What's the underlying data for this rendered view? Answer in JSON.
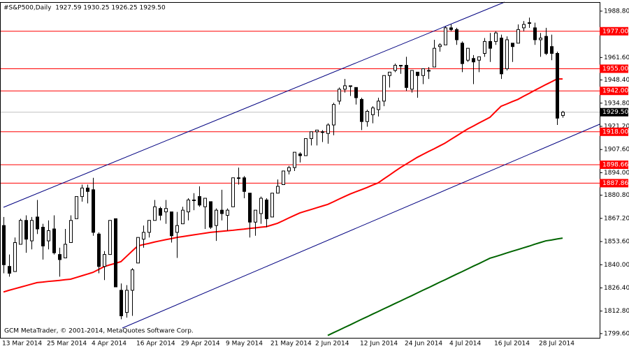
{
  "chart_data": {
    "type": "candlestick",
    "title": "#S&P500,Daily  1927.59 1930.25 1926.25 1929.50",
    "footer": "GCM MetaTrader, © 2001-2014, MetaQuotes Software Corp.",
    "categories": [
      "13 Mar 2014",
      null,
      null,
      null,
      null,
      null,
      null,
      null,
      "25 Mar 2014",
      null,
      null,
      null,
      null,
      null,
      null,
      null,
      "4 Apr 2014",
      null,
      null,
      null,
      null,
      null,
      null,
      null,
      "16 Apr 2014",
      null,
      null,
      null,
      null,
      null,
      null,
      null,
      "29 Apr 2014",
      null,
      null,
      null,
      null,
      null,
      null,
      null,
      "9 May 2014",
      null,
      null,
      null,
      null,
      null,
      null,
      null,
      "21 May 2014",
      null,
      null,
      null,
      null,
      null,
      null,
      null,
      "2 Jun 2014",
      null,
      null,
      null,
      null,
      null,
      null,
      null,
      "12 Jun 2014",
      null,
      null,
      null,
      null,
      null,
      null,
      null,
      "24 Jun 2014",
      null,
      null,
      null,
      null,
      null,
      null,
      null,
      "4 Jul 2014",
      null,
      null,
      null,
      null,
      null,
      null,
      null,
      "16 Jul 2014",
      null,
      null,
      null,
      null,
      null,
      null,
      null,
      "28 Jul 2014",
      null,
      null,
      null,
      null
    ],
    "open": [
      1863,
      1839,
      1836,
      1852,
      1866,
      1854,
      1868,
      1862,
      1854,
      1861,
      1846,
      1844,
      1853,
      1867,
      1880,
      1885,
      1884,
      1858,
      1839,
      1846,
      1867,
      1825,
      1812,
      1825,
      1841,
      1855,
      1859,
      1866,
      1873,
      1871,
      1871,
      1859,
      1864,
      1871,
      1878,
      1880,
      1874,
      1877,
      1863,
      1872,
      1869,
      1874,
      1891,
      1891,
      1882,
      1865,
      1870,
      1878,
      1868,
      1882,
      1887,
      1895,
      1897,
      1905,
      1904,
      1914,
      1918,
      1918,
      1917,
      1922,
      1936,
      1943,
      1945,
      1944,
      1937,
      1924,
      1928,
      1931,
      1936,
      1951,
      1954,
      1957,
      1957,
      1943,
      1953,
      1951,
      1954,
      1956,
      1968,
      1969,
      1979,
      1978,
      1970,
      1960,
      1961,
      1960,
      1964,
      1971,
      1971,
      1973,
      1955,
      1970,
      1970,
      1979,
      1982,
      1979,
      1972,
      1974,
      1968,
      1964,
      1927.59
    ],
    "high": [
      1868,
      1846,
      1856,
      1867,
      1869,
      1868,
      1878,
      1864,
      1866,
      1869,
      1850,
      1861,
      1869,
      1880,
      1887,
      1887,
      1891,
      1859,
      1848,
      1866,
      1867,
      1829,
      1828,
      1838,
      1856,
      1863,
      1866,
      1878,
      1874,
      1878,
      1871,
      1871,
      1874,
      1879,
      1882,
      1886,
      1879,
      1877,
      1873,
      1884,
      1873,
      1891,
      1897,
      1892,
      1882,
      1872,
      1880,
      1879,
      1882,
      1890,
      1895,
      1898,
      1906,
      1906,
      1914,
      1918,
      1919,
      1919,
      1923,
      1935,
      1944,
      1949,
      1945,
      1944,
      1938,
      1931,
      1933,
      1938,
      1951,
      1953,
      1958,
      1957,
      1962,
      1954,
      1953,
      1955,
      1956,
      1972,
      1970,
      1980,
      1981,
      1979,
      1971,
      1967,
      1963,
      1962,
      1973,
      1976,
      1977,
      1975,
      1974,
      1970,
      1981,
      1983,
      1985,
      1982,
      1976,
      1979,
      1975,
      1965,
      1930.25
    ],
    "low": [
      1835,
      1833,
      1836,
      1852,
      1847,
      1849,
      1858,
      1843,
      1849,
      1846,
      1833,
      1844,
      1853,
      1867,
      1877,
      1876,
      1857,
      1835,
      1831,
      1846,
      1827,
      1808,
      1809,
      1810,
      1841,
      1850,
      1856,
      1866,
      1866,
      1864,
      1853,
      1844,
      1864,
      1866,
      1872,
      1874,
      1861,
      1861,
      1854,
      1866,
      1860,
      1874,
      1887,
      1879,
      1856,
      1857,
      1864,
      1862,
      1868,
      1882,
      1887,
      1893,
      1895,
      1900,
      1904,
      1910,
      1910,
      1912,
      1911,
      1916,
      1934,
      1941,
      1939,
      1934,
      1919,
      1921,
      1923,
      1927,
      1933,
      1944,
      1953,
      1952,
      1942,
      1941,
      1938,
      1946,
      1949,
      1956,
      1965,
      1969,
      1977,
      1969,
      1953,
      1959,
      1946,
      1953,
      1962,
      1959,
      1969,
      1949,
      1954,
      1959,
      1970,
      1977,
      1979,
      1969,
      1962,
      1963,
      1960,
      1922,
      1926.25
    ],
    "close": [
      1840,
      1835,
      1853,
      1866,
      1855,
      1866,
      1861,
      1851,
      1860,
      1847,
      1843,
      1852,
      1866,
      1880,
      1885,
      1883,
      1859,
      1839,
      1846,
      1866,
      1827,
      1810,
      1825,
      1837,
      1856,
      1859,
      1866,
      1874,
      1869,
      1873,
      1857,
      1863,
      1872,
      1878,
      1878,
      1875,
      1879,
      1862,
      1872,
      1870,
      1872,
      1891,
      1891,
      1883,
      1865,
      1872,
      1879,
      1867,
      1882,
      1886,
      1895,
      1897,
      1906,
      1904,
      1914,
      1918,
      1919,
      1918,
      1922,
      1934,
      1943,
      1945,
      1945,
      1938,
      1924,
      1930,
      1932,
      1936,
      1951,
      1953,
      1957,
      1957,
      1944,
      1954,
      1951,
      1955,
      1954,
      1967,
      1969,
      1979,
      1978,
      1972,
      1958,
      1967,
      1959,
      1962,
      1971,
      1967,
      1976,
      1952,
      1972,
      1968,
      1978,
      1981,
      1982,
      1972,
      1973,
      1964,
      1964,
      1926,
      1929.5
    ],
    "up_color": "#ffffff",
    "down_color": "#000000",
    "lines": [
      {
        "color": "#ff0000",
        "values": [
          1824.0,
          1825.0,
          1825.9,
          1826.8,
          1827.7,
          1828.6,
          1829.5,
          1829.8,
          1830.2,
          1830.5,
          1830.8,
          1831.2,
          1831.5,
          1832.5,
          1833.5,
          1834.5,
          1835.5,
          1837.2,
          1838.9,
          1839.9,
          1840.8,
          1841.8,
          1844.9,
          1848.0,
          1851.0,
          1851.8,
          1852.5,
          1853.3,
          1854.0,
          1854.7,
          1855.3,
          1856.0,
          1856.5,
          1857.0,
          1857.5,
          1858.0,
          1858.5,
          1859.0,
          1859.3,
          1859.6,
          1859.9,
          1860.2,
          1860.6,
          1860.9,
          1861.3,
          1861.6,
          1862.0,
          1862.3,
          1863.3,
          1864.3,
          1865.8,
          1867.4,
          1868.9,
          1870.4,
          1871.4,
          1872.4,
          1873.4,
          1874.4,
          1875.4,
          1876.9,
          1878.5,
          1880.0,
          1881.5,
          1882.8,
          1884.0,
          1885.3,
          1886.7,
          1888.0,
          1890.3,
          1892.5,
          1894.8,
          1897.0,
          1899.0,
          1901.0,
          1903.0,
          1904.7,
          1906.4,
          1908.0,
          1909.7,
          1911.4,
          1913.5,
          1915.5,
          1917.6,
          1919.6,
          1921.3,
          1923.1,
          1924.8,
          1926.5,
          1929.8,
          1933.0,
          1934.3,
          1935.7,
          1937.0,
          1938.8,
          1940.5,
          1942.3,
          1944.0,
          1945.7,
          1947.3,
          1949.0,
          1949.0
        ]
      },
      {
        "color": "#006400",
        "values": [
          null,
          null,
          null,
          null,
          null,
          null,
          null,
          null,
          null,
          null,
          null,
          null,
          null,
          null,
          null,
          null,
          null,
          null,
          null,
          null,
          null,
          null,
          null,
          null,
          null,
          null,
          null,
          null,
          null,
          null,
          null,
          null,
          null,
          null,
          null,
          null,
          null,
          null,
          null,
          null,
          null,
          null,
          null,
          null,
          null,
          null,
          null,
          null,
          null,
          null,
          null,
          null,
          null,
          null,
          null,
          null,
          null,
          null,
          1798.5,
          1800.1,
          1801.6,
          1803.2,
          1804.7,
          1806.3,
          1807.9,
          1809.4,
          1811.0,
          1812.5,
          1814.1,
          1815.6,
          1817.2,
          1818.7,
          1820.3,
          1821.8,
          1823.4,
          1825.0,
          1826.5,
          1828.1,
          1829.7,
          1831.2,
          1832.8,
          1834.4,
          1835.9,
          1837.5,
          1839.1,
          1840.6,
          1842.2,
          1843.8,
          1844.8,
          1845.8,
          1846.9,
          1847.9,
          1848.9,
          1849.9,
          1850.9,
          1852.0,
          1853.0,
          1854.0,
          1854.5,
          1855.1,
          1855.6
        ]
      }
    ],
    "levels": [
      {
        "value": 1977.0,
        "label": "1977.00",
        "color": "#ff0000"
      },
      {
        "value": 1955.0,
        "label": "1955.00",
        "color": "#ff0000"
      },
      {
        "value": 1942.0,
        "label": "1942.00",
        "color": "#ff0000"
      },
      {
        "value": 1918.0,
        "label": "1918.00",
        "color": "#ff0000"
      },
      {
        "value": 1898.66,
        "label": "1898.66",
        "color": "#ff0000"
      },
      {
        "value": 1887.86,
        "label": "1887.86",
        "color": "#ff0000"
      }
    ],
    "price_line": {
      "value": 1929.5,
      "label": "1929.50",
      "color": "#c0c0c0"
    },
    "ylim": [
      1797.1,
      1994.1
    ],
    "yticks": [
      {
        "value": 1988.8,
        "label": "1988.80"
      },
      {
        "value": 1961.6,
        "label": "1961.60"
      },
      {
        "value": 1948.4,
        "label": "1948.40"
      },
      {
        "value": 1934.8,
        "label": "1934.80"
      },
      {
        "value": 1921.2,
        "label": "1921.20"
      },
      {
        "value": 1907.6,
        "label": "1907.60"
      },
      {
        "value": 1894.0,
        "label": "1894.00"
      },
      {
        "value": 1880.8,
        "label": "1880.80"
      },
      {
        "value": 1867.2,
        "label": "1867.20"
      },
      {
        "value": 1853.6,
        "label": "1853.60"
      },
      {
        "value": 1840.0,
        "label": "1840.00"
      },
      {
        "value": 1826.4,
        "label": "1826.40"
      },
      {
        "value": 1812.8,
        "label": "1812.80"
      },
      {
        "value": 1799.6,
        "label": "1799.60"
      }
    ]
  }
}
